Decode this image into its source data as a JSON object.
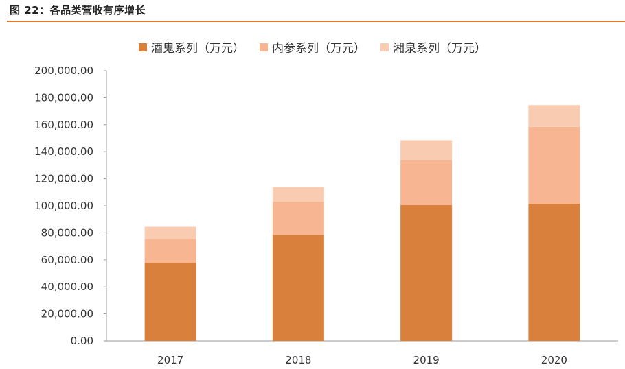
{
  "figure": {
    "title": "图 22：各品类营收有序增长"
  },
  "colors": {
    "accent_rule": "#e07b2e",
    "series": [
      "#d9813c",
      "#f7b591",
      "#f9ccb1"
    ]
  },
  "chart_data": {
    "type": "bar",
    "stacked": true,
    "categories": [
      "2017",
      "2018",
      "2019",
      "2020"
    ],
    "series": [
      {
        "name": "酒鬼系列（万元）",
        "values": [
          58000,
          78500,
          100500,
          101500
        ]
      },
      {
        "name": "内参系列（万元）",
        "values": [
          17500,
          24500,
          33000,
          57000
        ]
      },
      {
        "name": "湘泉系列（万元）",
        "values": [
          9000,
          11000,
          15000,
          16000
        ]
      }
    ],
    "yticks": [
      "0.00",
      "20,000.00",
      "40,000.00",
      "60,000.00",
      "80,000.00",
      "100,000.00",
      "120,000.00",
      "140,000.00",
      "160,000.00",
      "180,000.00",
      "200,000.00"
    ],
    "ylim": [
      0,
      200000
    ],
    "grid": false,
    "legend_position": "top"
  }
}
